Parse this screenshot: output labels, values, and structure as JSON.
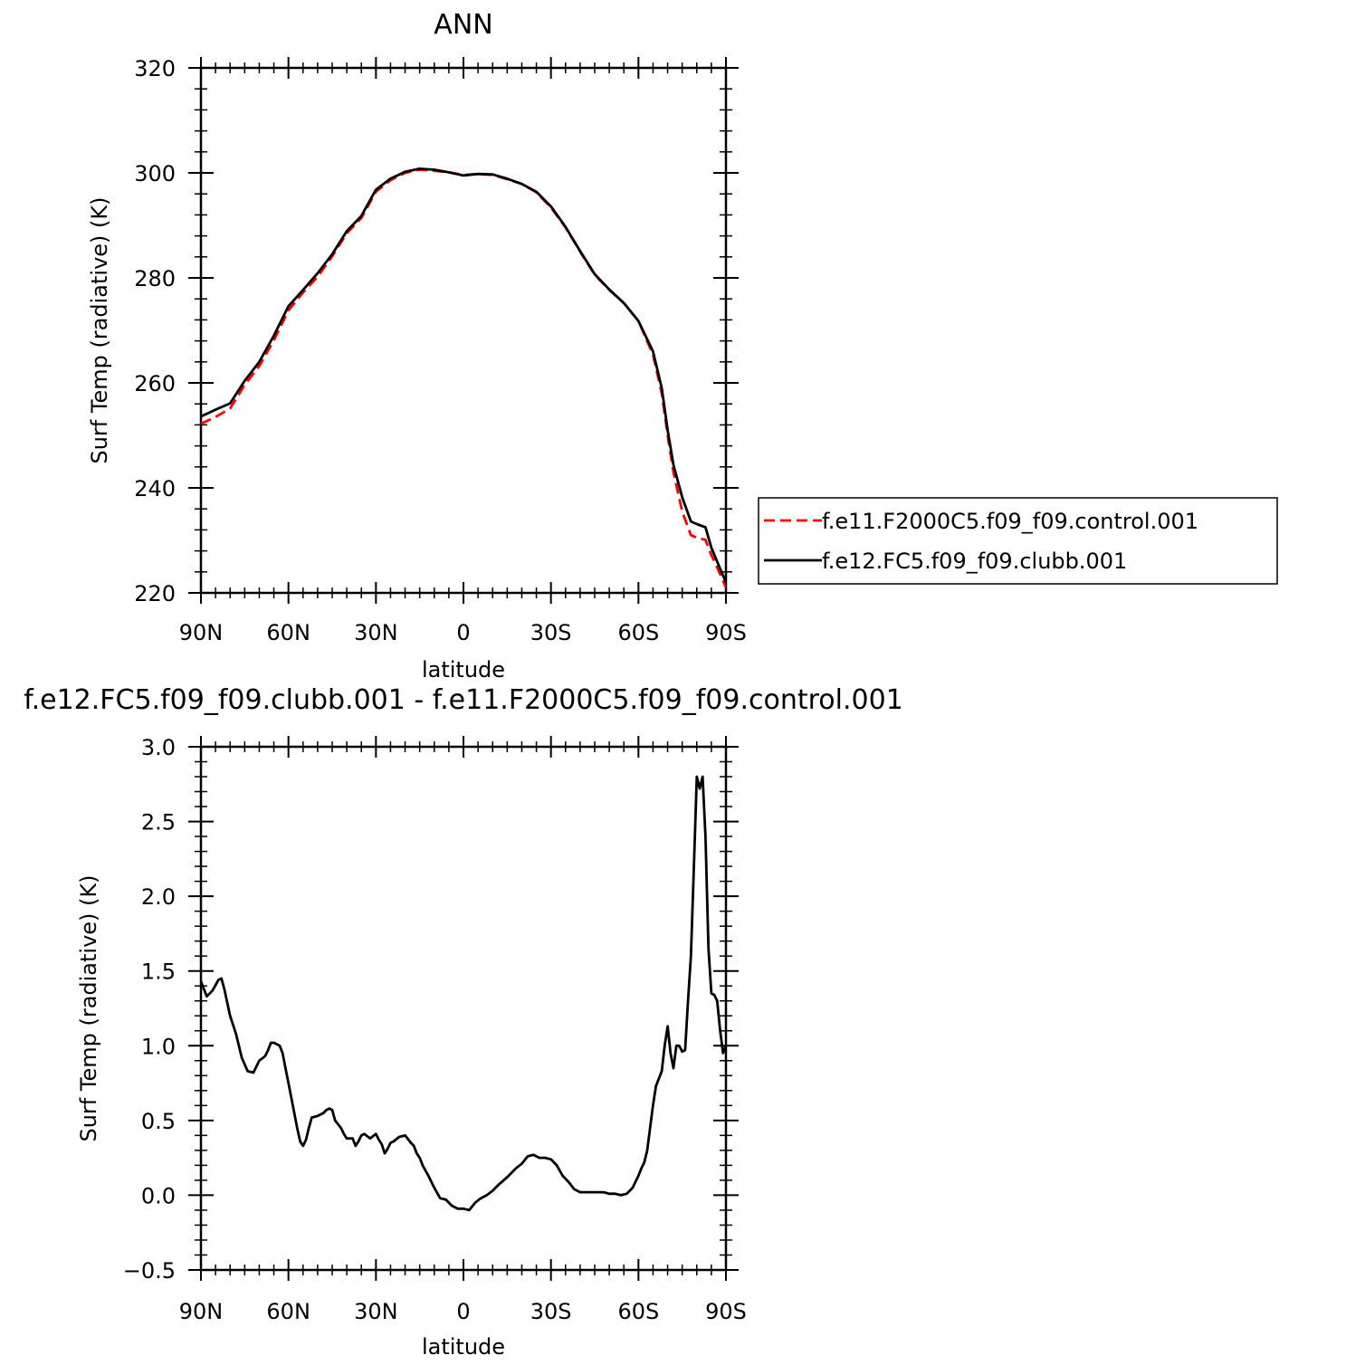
{
  "chart_data": [
    {
      "type": "line",
      "title": "ANN",
      "xlabel": "latitude",
      "ylabel": "Surf Temp (radiative) (K)",
      "xlim": [
        90,
        -90
      ],
      "ylim": [
        220,
        320
      ],
      "x_ticks": [
        90,
        60,
        30,
        0,
        -30,
        -60,
        -90
      ],
      "x_tick_labels": [
        "90N",
        "60N",
        "30N",
        "0",
        "30S",
        "60S",
        "90S"
      ],
      "y_ticks": [
        220,
        240,
        260,
        280,
        300,
        320
      ],
      "y_tick_labels": [
        "220",
        "240",
        "260",
        "280",
        "300",
        "320"
      ],
      "legend": {
        "placement": "right",
        "entries": [
          "f.e11.F2000C5.f09_f09.control.001",
          "f.e12.FC5.f09_f09.clubb.001"
        ]
      },
      "series": [
        {
          "name": "f.e11.F2000C5.f09_f09.control.001",
          "color": "#ff0000",
          "dash": "dashed",
          "x": [
            90,
            85,
            80,
            75,
            70,
            65,
            60,
            55,
            50,
            45,
            40,
            35,
            30,
            25,
            20,
            15,
            10,
            5,
            0,
            -5,
            -10,
            -15,
            -20,
            -25,
            -30,
            -35,
            -40,
            -45,
            -50,
            -55,
            -60,
            -65,
            -68,
            -70,
            -72,
            -75,
            -78,
            -80,
            -83,
            -85,
            -88,
            -90
          ],
          "y": [
            252.2,
            253.5,
            255.1,
            259.6,
            263.2,
            268.1,
            273.8,
            277.2,
            280.2,
            284.1,
            288.5,
            291.4,
            296.4,
            298.6,
            300,
            300.6,
            300.4,
            300.1,
            299.6,
            299.8,
            299.6,
            298.8,
            297.9,
            296.3,
            293.4,
            289.6,
            285,
            280.6,
            277.7,
            275.2,
            271.8,
            265.4,
            258,
            250,
            243,
            235.5,
            231,
            230.5,
            230.1,
            227.2,
            223.6,
            221
          ]
        },
        {
          "name": "f.e12.FC5.f09_f09.clubb.001",
          "color": "#000000",
          "dash": "solid",
          "x": [
            90,
            85,
            80,
            75,
            70,
            65,
            60,
            55,
            50,
            45,
            40,
            35,
            30,
            25,
            20,
            15,
            10,
            5,
            0,
            -5,
            -10,
            -15,
            -20,
            -25,
            -30,
            -35,
            -40,
            -45,
            -50,
            -55,
            -60,
            -65,
            -68,
            -70,
            -72,
            -75,
            -78,
            -80,
            -83,
            -85,
            -88,
            -90
          ],
          "y": [
            253.6,
            254.9,
            256.1,
            260.4,
            264,
            269,
            274.6,
            277.7,
            280.9,
            284.5,
            288.9,
            291.8,
            296.8,
            298.9,
            300.2,
            300.8,
            300.6,
            300.1,
            299.5,
            299.8,
            299.7,
            298.9,
            297.9,
            296.4,
            293.6,
            289.7,
            285.1,
            280.7,
            277.8,
            275.2,
            271.8,
            266,
            259,
            251,
            244.4,
            238.2,
            233.6,
            233.1,
            232.5,
            228.6,
            224.6,
            222
          ]
        }
      ]
    },
    {
      "type": "line",
      "title": "f.e12.FC5.f09_f09.clubb.001 - f.e11.F2000C5.f09_f09.control.001",
      "xlabel": "latitude",
      "ylabel": "Surf Temp (radiative) (K)",
      "xlim": [
        90,
        -90
      ],
      "ylim": [
        -0.5,
        3.0
      ],
      "x_ticks": [
        90,
        60,
        30,
        0,
        -30,
        -60,
        -90
      ],
      "x_tick_labels": [
        "90N",
        "60N",
        "30N",
        "0",
        "30S",
        "60S",
        "90S"
      ],
      "y_ticks": [
        -0.5,
        0.0,
        0.5,
        1.0,
        1.5,
        2.0,
        2.5,
        3.0
      ],
      "y_tick_labels": [
        "−0.5",
        "0.0",
        "0.5",
        "1.0",
        "1.5",
        "2.0",
        "2.5",
        "3.0"
      ],
      "series": [
        {
          "color": "#000000",
          "dash": "solid",
          "x": [
            90,
            88,
            86,
            84,
            83,
            82,
            80,
            78,
            76,
            74,
            72,
            70,
            68,
            67,
            66,
            65,
            64,
            63,
            62,
            61,
            60,
            58,
            57,
            56,
            55,
            54,
            53,
            52,
            50,
            48,
            47,
            46,
            45,
            44,
            42,
            41,
            40,
            38,
            37,
            36,
            35,
            34,
            32,
            30,
            29,
            28,
            27,
            26,
            25,
            24,
            22,
            20,
            18,
            17,
            16,
            15,
            14,
            12,
            10,
            8,
            6,
            4,
            2,
            0,
            -2,
            -4,
            -6,
            -8,
            -10,
            -12,
            -15,
            -18,
            -20,
            -22,
            -24,
            -26,
            -28,
            -30,
            -32,
            -34,
            -36,
            -38,
            -40,
            -42,
            -44,
            -46,
            -48,
            -50,
            -52,
            -54,
            -56,
            -58,
            -60,
            -61,
            -62,
            -63,
            -64,
            -65,
            -66,
            -67,
            -68,
            -69,
            -70,
            -71,
            -72,
            -73,
            -74,
            -75,
            -76,
            -77,
            -78,
            -79,
            -80,
            -81,
            -82,
            -83,
            -84,
            -85,
            -86,
            -87,
            -88,
            -89,
            -90
          ],
          "y": [
            1.43,
            1.33,
            1.37,
            1.44,
            1.45,
            1.38,
            1.2,
            1.08,
            0.92,
            0.83,
            0.82,
            0.9,
            0.93,
            0.97,
            1.02,
            1.02,
            1.01,
            1.0,
            0.95,
            0.85,
            0.75,
            0.55,
            0.45,
            0.36,
            0.33,
            0.37,
            0.45,
            0.52,
            0.53,
            0.55,
            0.57,
            0.58,
            0.57,
            0.5,
            0.45,
            0.41,
            0.38,
            0.38,
            0.33,
            0.36,
            0.4,
            0.41,
            0.38,
            0.41,
            0.37,
            0.34,
            0.28,
            0.31,
            0.35,
            0.36,
            0.39,
            0.4,
            0.35,
            0.33,
            0.28,
            0.25,
            0.2,
            0.13,
            0.05,
            -0.02,
            -0.03,
            -0.07,
            -0.09,
            -0.09,
            -0.1,
            -0.05,
            -0.02,
            0.0,
            0.03,
            0.07,
            0.12,
            0.18,
            0.21,
            0.26,
            0.27,
            0.25,
            0.25,
            0.24,
            0.2,
            0.13,
            0.09,
            0.04,
            0.02,
            0.02,
            0.02,
            0.02,
            0.02,
            0.01,
            0.01,
            0.0,
            0.01,
            0.05,
            0.13,
            0.18,
            0.22,
            0.3,
            0.45,
            0.6,
            0.73,
            0.78,
            0.83,
            1.0,
            1.13,
            0.95,
            0.85,
            1.0,
            1.0,
            0.96,
            0.97,
            1.3,
            1.6,
            2.2,
            2.8,
            2.72,
            2.8,
            2.4,
            1.65,
            1.35,
            1.34,
            1.3,
            1.1,
            0.95,
            1.0
          ]
        }
      ]
    }
  ]
}
